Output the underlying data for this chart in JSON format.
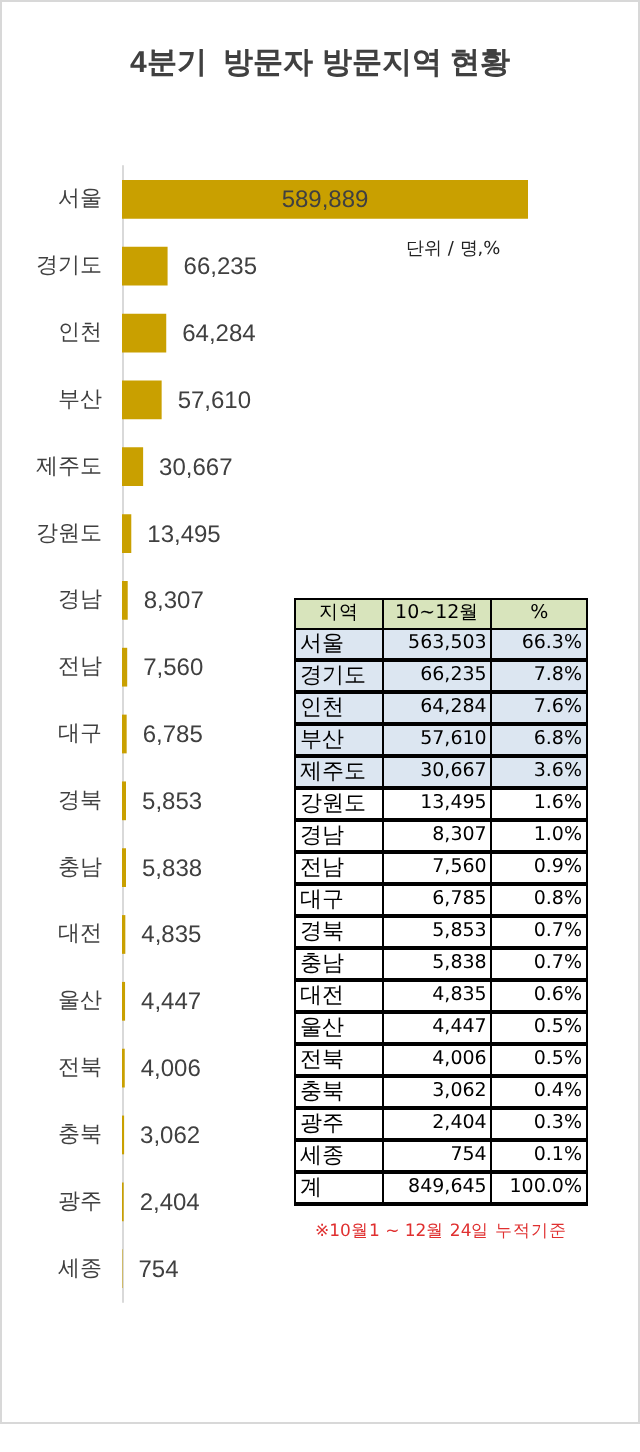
{
  "chart_data": [
    {
      "type": "bar",
      "orientation": "horizontal",
      "title": "4분기  방문자 방문지역 현황",
      "categories": [
        "서울",
        "경기도",
        "인천",
        "부산",
        "제주도",
        "강원도",
        "경남",
        "전남",
        "대구",
        "경북",
        "충남",
        "대전",
        "울산",
        "전북",
        "충북",
        "광주",
        "세종"
      ],
      "values": [
        589889,
        66235,
        64284,
        57610,
        30667,
        13495,
        8307,
        7560,
        6785,
        5853,
        5838,
        4835,
        4447,
        4006,
        3062,
        2404,
        754
      ],
      "value_labels": [
        "589,889",
        "66,235",
        "64,284",
        "57,610",
        "30,667",
        "13,495",
        "8,307",
        "7,560",
        "6,785",
        "5,853",
        "5,838",
        "4,835",
        "4,447",
        "4,006",
        "3,062",
        "2,404",
        "754"
      ],
      "color": "#c9a000",
      "grid": false,
      "annotations": [
        "단위 / 명,%"
      ]
    },
    {
      "type": "other",
      "xlabel": "지역",
      "categories": [
        "서울",
        "경기도",
        "인천",
        "부산",
        "제주도",
        "강원도",
        "경남",
        "전남",
        "대구",
        "경북",
        "충남",
        "대전",
        "울산",
        "전북",
        "충북",
        "광주",
        "세종",
        "계"
      ],
      "series": [
        {
          "name": "10~12월",
          "values": [
            563503,
            66235,
            64284,
            57610,
            30667,
            13495,
            8307,
            7560,
            6785,
            5853,
            5838,
            4835,
            4447,
            4006,
            3062,
            2404,
            754,
            849645
          ],
          "value_labels": [
            "563,503",
            "66,235",
            "64,284",
            "57,610",
            "30,667",
            "13,495",
            "8,307",
            "7,560",
            "6,785",
            "5,853",
            "5,838",
            "4,835",
            "4,447",
            "4,006",
            "3,062",
            "2,404",
            "754",
            "849,645"
          ]
        },
        {
          "name": "%",
          "values": [
            66.3,
            7.8,
            7.6,
            6.8,
            3.6,
            1.6,
            1.0,
            0.9,
            0.8,
            0.7,
            0.7,
            0.6,
            0.5,
            0.5,
            0.4,
            0.3,
            0.1,
            100.0
          ],
          "value_labels": [
            "66.3%",
            "7.8%",
            "7.6%",
            "6.8%",
            "3.6%",
            "1.6%",
            "1.0%",
            "0.9%",
            "0.8%",
            "0.7%",
            "0.7%",
            "0.6%",
            "0.5%",
            "0.5%",
            "0.4%",
            "0.3%",
            "0.1%",
            "100.0%"
          ]
        }
      ],
      "annotations": [
        "※10월1 ~ 12월 24일 누적기준"
      ]
    }
  ]
}
